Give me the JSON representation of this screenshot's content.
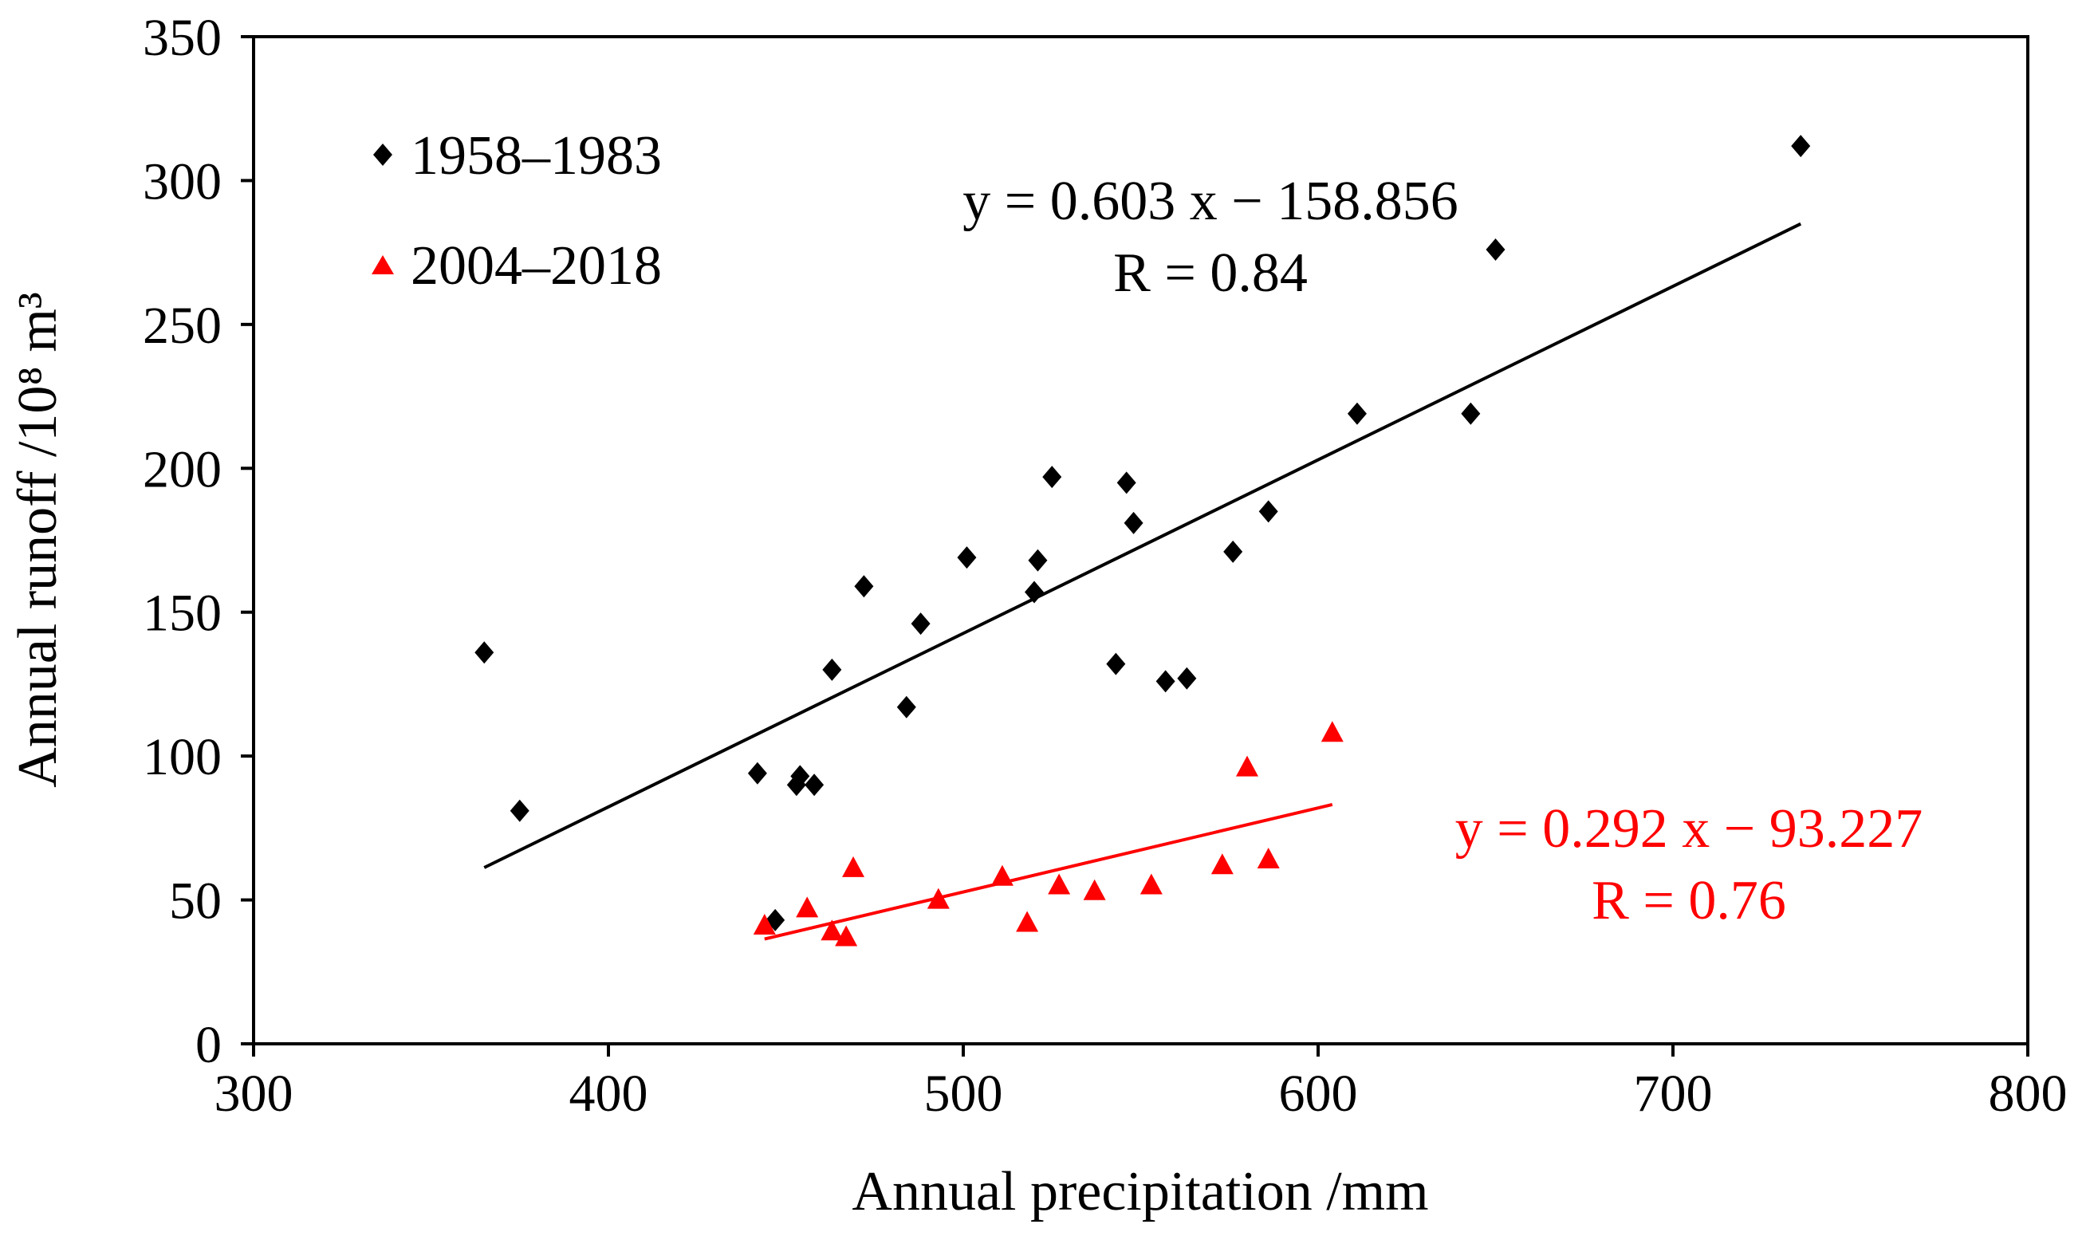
{
  "chart_data": {
    "type": "scatter",
    "xlabel": "Annual precipitation /mm",
    "ylabel": "Annual runoff  /10⁸ m³",
    "xlim": [
      300,
      800
    ],
    "ylim": [
      0,
      350
    ],
    "xticks": [
      300,
      400,
      500,
      600,
      700,
      800
    ],
    "yticks": [
      0,
      50,
      100,
      150,
      200,
      250,
      300,
      350
    ],
    "grid": false,
    "legend_position": "top-left",
    "series": [
      {
        "name": "1958–1983",
        "marker": "diamond",
        "color": "#000000",
        "points": [
          [
            365,
            136
          ],
          [
            375,
            81
          ],
          [
            442,
            94
          ],
          [
            447,
            43
          ],
          [
            453,
            90
          ],
          [
            454,
            93
          ],
          [
            458,
            90
          ],
          [
            463,
            130
          ],
          [
            472,
            159
          ],
          [
            484,
            117
          ],
          [
            488,
            146
          ],
          [
            501,
            169
          ],
          [
            520,
            157
          ],
          [
            521,
            168
          ],
          [
            525,
            197
          ],
          [
            543,
            132
          ],
          [
            546,
            195
          ],
          [
            548,
            181
          ],
          [
            557,
            126
          ],
          [
            563,
            127
          ],
          [
            576,
            171
          ],
          [
            586,
            185
          ],
          [
            611,
            219
          ],
          [
            643,
            219
          ],
          [
            650,
            276
          ],
          [
            736,
            312
          ]
        ],
        "fit": {
          "slope": 0.603,
          "intercept": -158.856,
          "x_range": [
            365,
            736
          ],
          "equation": "y = 0.603 x − 158.856",
          "r_text": "R = 0.84"
        }
      },
      {
        "name": "2004–2018",
        "marker": "triangle",
        "color": "#ff0000",
        "points": [
          [
            444,
            41
          ],
          [
            456,
            47
          ],
          [
            463,
            39
          ],
          [
            467,
            37
          ],
          [
            469,
            61
          ],
          [
            493,
            50
          ],
          [
            511,
            58
          ],
          [
            518,
            42
          ],
          [
            527,
            55
          ],
          [
            537,
            53
          ],
          [
            553,
            55
          ],
          [
            573,
            62
          ],
          [
            580,
            96
          ],
          [
            586,
            64
          ],
          [
            604,
            108
          ]
        ],
        "fit": {
          "slope": 0.292,
          "intercept": -93.227,
          "x_range": [
            444,
            604
          ],
          "equation": "y = 0.292 x − 93.227",
          "r_text": "R = 0.76"
        }
      }
    ]
  }
}
